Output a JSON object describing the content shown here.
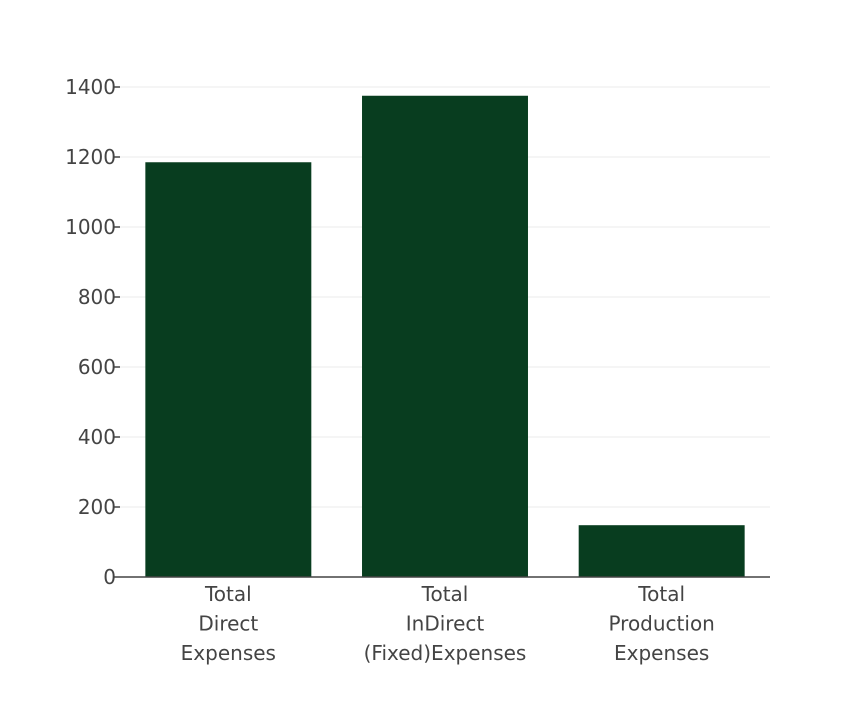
{
  "chart_data": {
    "type": "bar",
    "title": "",
    "xlabel": "",
    "ylabel": "",
    "categories": [
      [
        "Total",
        "Direct",
        "Expenses"
      ],
      [
        "Total",
        "InDirect",
        "(Fixed)Expenses"
      ],
      [
        "Total",
        "Production",
        "Expenses"
      ]
    ],
    "series": [
      {
        "values": [
          1185,
          1375,
          148
        ]
      }
    ],
    "ylim": [
      0,
      1400
    ],
    "yticks": [
      0,
      200,
      400,
      600,
      800,
      1000,
      1200,
      1400
    ],
    "grid": true,
    "legend": "none",
    "colors": {
      "bar": "#083d1f",
      "grid": "#ebebeb",
      "axis": "#444444",
      "text": "#444444"
    }
  }
}
